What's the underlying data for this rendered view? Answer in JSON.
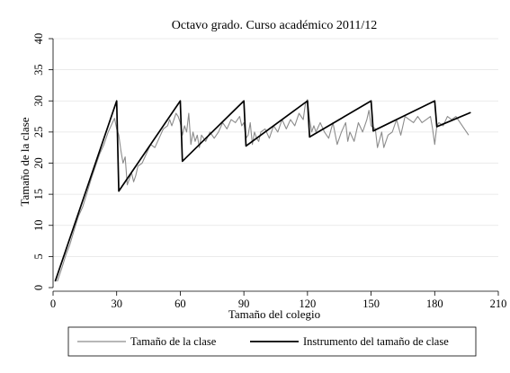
{
  "chart_data": {
    "type": "line",
    "title": "Octavo grado. Curso académico 2011/12",
    "xlabel": "Tamaño del colegio",
    "ylabel": "Tamaño de la clase",
    "xlim": [
      0,
      210
    ],
    "ylim": [
      0,
      40
    ],
    "x_ticks": [
      0,
      30,
      60,
      90,
      120,
      150,
      180,
      210
    ],
    "y_ticks": [
      0,
      5,
      10,
      15,
      20,
      25,
      30,
      35,
      40
    ],
    "grid": "horizontal",
    "legend_position": "bottom",
    "series": [
      {
        "name": "Tamaño de la clase",
        "color": "#8c8c8c",
        "style": "thin-gray",
        "points": [
          [
            2,
            1
          ],
          [
            4,
            3
          ],
          [
            6,
            5.2
          ],
          [
            8,
            7
          ],
          [
            10,
            9.3
          ],
          [
            12,
            11.5
          ],
          [
            14,
            13
          ],
          [
            16,
            15.2
          ],
          [
            18,
            17.5
          ],
          [
            20,
            19.5
          ],
          [
            22,
            21.5
          ],
          [
            24,
            23
          ],
          [
            26,
            25
          ],
          [
            28,
            26.5
          ],
          [
            29,
            27.2
          ],
          [
            30,
            25.5
          ],
          [
            31,
            24.5
          ],
          [
            32,
            22
          ],
          [
            33,
            20
          ],
          [
            34,
            21
          ],
          [
            35,
            16.5
          ],
          [
            36,
            17.5
          ],
          [
            37,
            18.5
          ],
          [
            38,
            17
          ],
          [
            39,
            18
          ],
          [
            40,
            19.5
          ],
          [
            42,
            20
          ],
          [
            44,
            21.5
          ],
          [
            46,
            23
          ],
          [
            48,
            22.5
          ],
          [
            50,
            24
          ],
          [
            52,
            25.5
          ],
          [
            54,
            26
          ],
          [
            55,
            27
          ],
          [
            56,
            26
          ],
          [
            57,
            27
          ],
          [
            58,
            28
          ],
          [
            59,
            27.5
          ],
          [
            60,
            26.5
          ],
          [
            61,
            24.5
          ],
          [
            62,
            26
          ],
          [
            63,
            25
          ],
          [
            64,
            28
          ],
          [
            65,
            23
          ],
          [
            66,
            25
          ],
          [
            67,
            23.5
          ],
          [
            68,
            24.5
          ],
          [
            69,
            22.5
          ],
          [
            70,
            24.5
          ],
          [
            72,
            23.5
          ],
          [
            74,
            25
          ],
          [
            76,
            24
          ],
          [
            78,
            25
          ],
          [
            80,
            26.5
          ],
          [
            82,
            25.5
          ],
          [
            84,
            27
          ],
          [
            86,
            26.5
          ],
          [
            88,
            27.5
          ],
          [
            89,
            26
          ],
          [
            90,
            26.5
          ],
          [
            91,
            24
          ],
          [
            92,
            24.5
          ],
          [
            93,
            26.5
          ],
          [
            94,
            23
          ],
          [
            95,
            25
          ],
          [
            96,
            24
          ],
          [
            97,
            23.5
          ],
          [
            98,
            25
          ],
          [
            100,
            25.5
          ],
          [
            102,
            24
          ],
          [
            104,
            26
          ],
          [
            106,
            25
          ],
          [
            108,
            27
          ],
          [
            110,
            25.5
          ],
          [
            112,
            27
          ],
          [
            114,
            26
          ],
          [
            116,
            28
          ],
          [
            118,
            27
          ],
          [
            119,
            29.5
          ],
          [
            120,
            30.2
          ],
          [
            121,
            27
          ],
          [
            122,
            25
          ],
          [
            123,
            26
          ],
          [
            124,
            25
          ],
          [
            126,
            26.5
          ],
          [
            128,
            25
          ],
          [
            130,
            24
          ],
          [
            132,
            26.5
          ],
          [
            134,
            23
          ],
          [
            136,
            25
          ],
          [
            138,
            26.5
          ],
          [
            139,
            23.5
          ],
          [
            140,
            25
          ],
          [
            142,
            23.5
          ],
          [
            144,
            26.5
          ],
          [
            146,
            25
          ],
          [
            148,
            27
          ],
          [
            149,
            28.5
          ],
          [
            150,
            26
          ],
          [
            152,
            25.5
          ],
          [
            153,
            22.5
          ],
          [
            155,
            25
          ],
          [
            156,
            22.5
          ],
          [
            158,
            24.5
          ],
          [
            160,
            25
          ],
          [
            162,
            27
          ],
          [
            164,
            24.5
          ],
          [
            166,
            27.5
          ],
          [
            168,
            27
          ],
          [
            170,
            26.5
          ],
          [
            172,
            27.5
          ],
          [
            174,
            26.5
          ],
          [
            176,
            27
          ],
          [
            178,
            27.5
          ],
          [
            179,
            25.5
          ],
          [
            180,
            23
          ],
          [
            181,
            26
          ],
          [
            182,
            26.5
          ],
          [
            184,
            26
          ],
          [
            186,
            27.5
          ],
          [
            188,
            27
          ],
          [
            190,
            27.5
          ],
          [
            192,
            26.5
          ],
          [
            194,
            25.5
          ],
          [
            196,
            24.5
          ]
        ]
      },
      {
        "name": "Instrumento del tamaño de clase",
        "color": "#000000",
        "style": "thick-black",
        "points": [
          [
            1,
            1
          ],
          [
            30,
            30
          ],
          [
            31,
            15.5
          ],
          [
            60,
            30
          ],
          [
            61,
            20.3
          ],
          [
            90,
            30
          ],
          [
            91,
            22.75
          ],
          [
            120,
            30
          ],
          [
            121,
            24.2
          ],
          [
            150,
            30
          ],
          [
            151,
            25.17
          ],
          [
            180,
            30
          ],
          [
            181,
            25.86
          ],
          [
            197,
            28.14
          ]
        ]
      }
    ]
  }
}
